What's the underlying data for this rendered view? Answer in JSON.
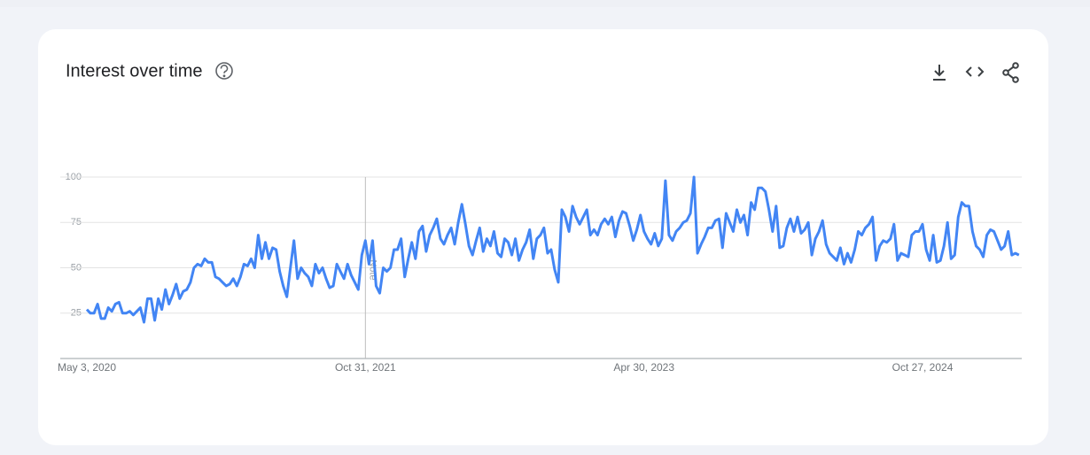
{
  "chart_data": {
    "type": "line",
    "title": "Interest over time",
    "categories": [
      "May 3, 2020",
      null,
      null,
      null,
      null,
      null,
      null,
      null,
      null,
      null,
      null,
      null,
      null,
      null,
      null,
      null,
      null,
      null,
      null,
      null,
      null,
      null,
      null,
      null,
      null,
      null,
      null,
      null,
      null,
      null,
      null,
      null,
      null,
      null,
      null,
      null,
      null,
      null,
      null,
      null,
      null,
      null,
      null,
      null,
      null,
      null,
      null,
      null,
      null,
      null,
      null,
      null,
      null,
      null,
      null,
      null,
      null,
      null,
      null,
      null,
      null,
      null,
      null,
      null,
      null,
      null,
      null,
      null,
      null,
      null,
      null,
      null,
      null,
      null,
      null,
      null,
      null,
      null,
      "Oct 31, 2021",
      null,
      null,
      null,
      null,
      null,
      null,
      null,
      null,
      null,
      null,
      null,
      null,
      null,
      null,
      null,
      null,
      null,
      null,
      null,
      null,
      null,
      null,
      null,
      null,
      null,
      null,
      null,
      null,
      null,
      null,
      null,
      null,
      null,
      null,
      null,
      null,
      null,
      null,
      null,
      null,
      null,
      null,
      null,
      null,
      null,
      null,
      null,
      null,
      null,
      null,
      null,
      null,
      null,
      null,
      null,
      null,
      null,
      null,
      null,
      null,
      null,
      null,
      null,
      null,
      null,
      null,
      null,
      null,
      null,
      null,
      null,
      null,
      null,
      null,
      null,
      null,
      null,
      "Apr 30, 2023",
      null,
      null,
      null,
      null,
      null,
      null,
      null,
      null,
      null,
      null,
      null,
      null,
      null,
      null,
      null,
      null,
      null,
      null,
      null,
      null,
      null,
      null,
      null,
      null,
      null,
      null,
      null,
      null,
      null,
      null,
      null,
      null,
      null,
      null,
      null,
      null,
      null,
      null,
      null,
      null,
      null,
      null,
      null,
      null,
      null,
      null,
      null,
      null,
      null,
      null,
      null,
      null,
      null,
      null,
      null,
      null,
      null,
      null,
      null,
      null,
      null,
      null,
      null,
      null,
      null,
      null,
      null,
      null,
      null,
      null,
      null,
      null,
      null,
      null,
      null,
      null,
      null,
      "Oct 27, 2024",
      null,
      null,
      null,
      null,
      null,
      null,
      null,
      null,
      null,
      null,
      null,
      null,
      null,
      null,
      null,
      null,
      null,
      null,
      null,
      null,
      null,
      null,
      null,
      null,
      null,
      null,
      null
    ],
    "values": [
      27,
      25,
      25,
      30,
      22,
      22,
      28,
      26,
      30,
      31,
      25,
      25,
      26,
      24,
      26,
      28,
      20,
      33,
      33,
      21,
      33,
      27,
      38,
      30,
      35,
      41,
      33,
      37,
      38,
      42,
      50,
      52,
      51,
      55,
      53,
      53,
      45,
      44,
      42,
      40,
      41,
      44,
      40,
      45,
      52,
      51,
      55,
      50,
      68,
      55,
      64,
      55,
      61,
      60,
      48,
      40,
      34,
      50,
      65,
      44,
      50,
      47,
      45,
      40,
      52,
      47,
      50,
      44,
      39,
      40,
      52,
      48,
      44,
      52,
      46,
      42,
      38,
      57,
      65,
      52,
      65,
      40,
      36,
      50,
      48,
      50,
      60,
      60,
      66,
      45,
      55,
      64,
      55,
      70,
      73,
      59,
      68,
      72,
      77,
      66,
      63,
      68,
      72,
      63,
      75,
      85,
      74,
      62,
      57,
      65,
      72,
      59,
      66,
      62,
      70,
      58,
      56,
      66,
      64,
      57,
      66,
      54,
      60,
      64,
      71,
      55,
      66,
      68,
      72,
      58,
      60,
      49,
      42,
      82,
      78,
      70,
      84,
      78,
      74,
      78,
      82,
      68,
      71,
      68,
      74,
      77,
      74,
      78,
      67,
      76,
      81,
      80,
      73,
      65,
      71,
      79,
      70,
      66,
      63,
      69,
      62,
      66,
      98,
      68,
      65,
      70,
      72,
      75,
      76,
      80,
      100,
      58,
      63,
      67,
      72,
      72,
      76,
      77,
      61,
      80,
      75,
      70,
      82,
      75,
      79,
      68,
      86,
      82,
      94,
      94,
      92,
      82,
      70,
      84,
      61,
      62,
      72,
      77,
      70,
      78,
      69,
      71,
      75,
      57,
      66,
      70,
      76,
      63,
      58,
      56,
      54,
      61,
      52,
      58,
      53,
      60,
      70,
      68,
      72,
      74,
      78,
      54,
      62,
      65,
      64,
      66,
      74,
      54,
      58,
      57,
      56,
      68,
      70,
      70,
      74,
      60,
      54,
      68,
      53,
      54,
      62,
      75,
      55,
      57,
      78,
      86,
      84,
      84,
      70,
      62,
      60,
      56,
      68,
      71,
      70,
      65,
      60,
      62,
      70,
      57,
      58,
      57
    ],
    "color": "#4285f4",
    "ylim": [
      0,
      100
    ],
    "yticks": [
      25,
      50,
      75,
      100
    ],
    "grid": true,
    "annotation": "Note"
  }
}
